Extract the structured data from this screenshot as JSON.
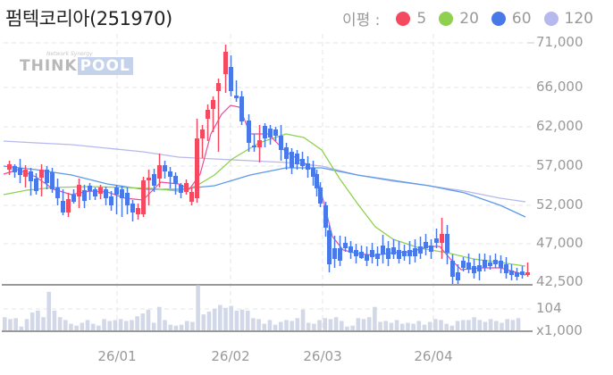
{
  "header": {
    "title": "펌텍코리아(251970)",
    "legend_label": "이평 :",
    "legend": [
      {
        "label": "5",
        "color": "#f4495f"
      },
      {
        "label": "20",
        "color": "#8fd14f"
      },
      {
        "label": "60",
        "color": "#4979e8"
      },
      {
        "label": "120",
        "color": "#b6b8ee"
      }
    ]
  },
  "watermark": {
    "think": "THINK",
    "pool": "POOL",
    "tagline": "Network Synergy"
  },
  "price_axis": [
    "71,000",
    "66,000",
    "62,000",
    "57,000",
    "52,000",
    "47,000",
    "42,500"
  ],
  "volume_axis": {
    "max": "104",
    "unit": "x1,000"
  },
  "x_axis": [
    "26/01",
    "26/02",
    "26/03",
    "26/04"
  ],
  "colors": {
    "up": "#f4495f",
    "down": "#4979e8",
    "ma5": "#ec4a9a",
    "ma20": "#8fd14f",
    "ma60": "#5b9ae8",
    "ma120": "#b6b8ee",
    "volume": "#d2d8e8"
  },
  "chart_data": {
    "type": "candlestick",
    "title": "펌텍코리아(251970)",
    "xlabel": "",
    "ylabel": "",
    "x_tick_labels": [
      "26/01",
      "26/02",
      "26/03",
      "26/04"
    ],
    "y_tick_labels": [
      "71,000",
      "66,000",
      "62,000",
      "57,000",
      "52,000",
      "47,000",
      "42,500"
    ],
    "ylim": [
      42500,
      71000
    ],
    "grid": true,
    "legend": [
      "이평 5",
      "이평 20",
      "이평 60",
      "이평 120"
    ],
    "legend_position": "top-right",
    "approx_price_path": {
      "start": 56500,
      "late_dec_low": 51000,
      "mid_jan_low": 51000,
      "late_jan_rally": 63000,
      "peak_early_feb": 69500,
      "feb_consolidation": 60000,
      "late_feb": 56000,
      "mar_crash_low": 44000,
      "mar_apr_range": [
        44500,
        48000
      ],
      "apr_spike": 49500,
      "end": 44000
    },
    "volume_axis": {
      "max_label": "104",
      "unit": "x1,000"
    },
    "moving_averages": {
      "ma120": {
        "start": 59500,
        "end": 52500
      },
      "ma60": {
        "start": 56500,
        "end": 50500
      },
      "ma20": {
        "start": 53500,
        "peak": 61000,
        "end": 45000
      }
    }
  }
}
